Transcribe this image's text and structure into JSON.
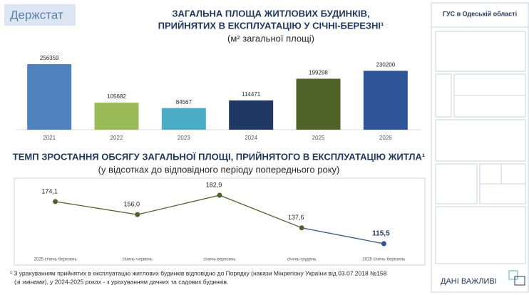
{
  "logo": "Держстат",
  "sidebar": {
    "title": "ГУС в Одеській області",
    "slogan": "ДАНІ ВАЖЛИВІ"
  },
  "footnote": [
    "¹ З урахуванням прийнятих в експлуатацію житлових будинків відповідно до Порядку (накази Мінрегіону України від 03.07.2018 №158",
    "(зі змінами), у 2024-2025 роках - з урахуванням дачних та садових будинків."
  ],
  "chart_data": [
    {
      "type": "bar",
      "title": [
        "ЗАГАЛЬНА ПЛОЩА ЖИТЛОВИХ БУДИНКІВ,",
        "ПРИЙНЯТИХ В ЕКСПЛУАТАЦІЮ У СІЧНІ-БЕРЕЗНІ¹"
      ],
      "subtitle": "(м² загальної площі)",
      "categories": [
        "2021",
        "2022",
        "2023",
        "2024",
        "2025",
        "2026"
      ],
      "values": [
        256359,
        105682,
        84567,
        114471,
        199298,
        230200
      ],
      "colors": [
        "#4f81bd",
        "#9bbb59",
        "#4bacc6",
        "#1f3864",
        "#4f6228",
        "#2e5597"
      ]
    },
    {
      "type": "line",
      "title": "ТЕМП ЗРОСТАННЯ ОБСЯГУ ЗАГАЛЬНОЇ ПЛОЩІ, ПРИЙНЯТОГО В ЕКСПЛУАТАЦІЮ ЖИТЛА¹",
      "subtitle": "(у відсотках до відповідного періоду попереднього року)",
      "categories": [
        "2025 січень-березень",
        "січень-червень",
        "січень-вересень",
        "січень-грудень",
        "2026 січень-березень"
      ],
      "values": [
        174.1,
        156.0,
        182.9,
        137.6,
        115.5
      ],
      "value_labels": [
        "174,1",
        "156,0",
        "182,9",
        "137,6",
        "115,5"
      ],
      "color": "#4f6228",
      "point_colors": [
        "#4f6228",
        "#4f6228",
        "#4f6228",
        "#4f6228",
        "#2e5597"
      ]
    }
  ]
}
